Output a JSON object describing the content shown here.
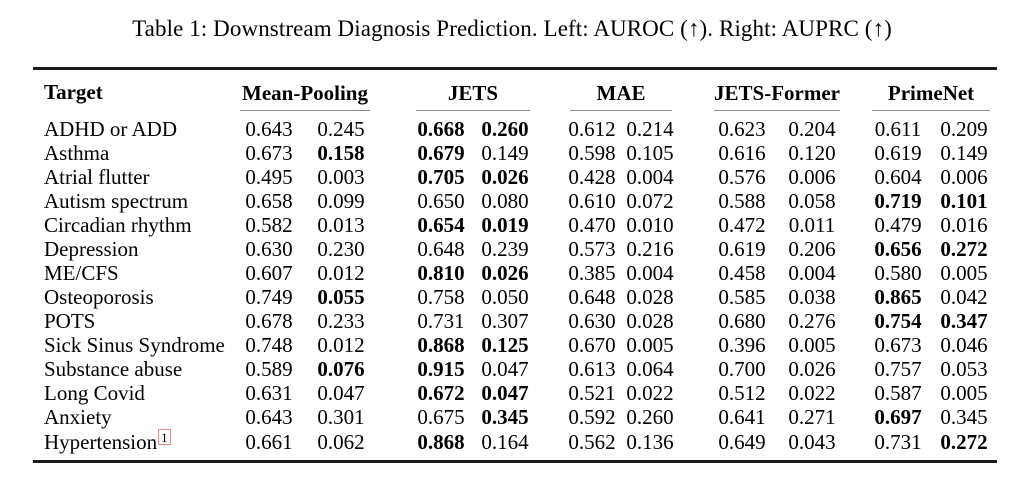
{
  "caption": "Table 1: Downstream Diagnosis Prediction. Left: AUROC (↑). Right: AUPRC (↑)",
  "table": {
    "target_header": "Target",
    "groups": [
      "Mean-Pooling",
      "JETS",
      "MAE",
      "JETS-Former",
      "PrimeNet"
    ],
    "metrics": [
      "AUROC",
      "AUPRC"
    ],
    "rule_colors": {
      "heavy_rule": "#1c1c1c",
      "cmidrule": "#8d8d8d",
      "footnote_box": "#ef8a85"
    },
    "rows": [
      {
        "target": "ADHD or ADD",
        "values": [
          "0.643",
          "0.245",
          "0.668",
          "0.260",
          "0.612",
          "0.214",
          "0.623",
          "0.204",
          "0.611",
          "0.209"
        ],
        "bold": [
          false,
          false,
          true,
          true,
          false,
          false,
          false,
          false,
          false,
          false
        ]
      },
      {
        "target": "Asthma",
        "values": [
          "0.673",
          "0.158",
          "0.679",
          "0.149",
          "0.598",
          "0.105",
          "0.616",
          "0.120",
          "0.619",
          "0.149"
        ],
        "bold": [
          false,
          true,
          true,
          false,
          false,
          false,
          false,
          false,
          false,
          false
        ]
      },
      {
        "target": "Atrial flutter",
        "values": [
          "0.495",
          "0.003",
          "0.705",
          "0.026",
          "0.428",
          "0.004",
          "0.576",
          "0.006",
          "0.604",
          "0.006"
        ],
        "bold": [
          false,
          false,
          true,
          true,
          false,
          false,
          false,
          false,
          false,
          false
        ]
      },
      {
        "target": "Autism spectrum",
        "values": [
          "0.658",
          "0.099",
          "0.650",
          "0.080",
          "0.610",
          "0.072",
          "0.588",
          "0.058",
          "0.719",
          "0.101"
        ],
        "bold": [
          false,
          false,
          false,
          false,
          false,
          false,
          false,
          false,
          true,
          true
        ]
      },
      {
        "target": "Circadian rhythm",
        "values": [
          "0.582",
          "0.013",
          "0.654",
          "0.019",
          "0.470",
          "0.010",
          "0.472",
          "0.011",
          "0.479",
          "0.016"
        ],
        "bold": [
          false,
          false,
          true,
          true,
          false,
          false,
          false,
          false,
          false,
          false
        ]
      },
      {
        "target": "Depression",
        "values": [
          "0.630",
          "0.230",
          "0.648",
          "0.239",
          "0.573",
          "0.216",
          "0.619",
          "0.206",
          "0.656",
          "0.272"
        ],
        "bold": [
          false,
          false,
          false,
          false,
          false,
          false,
          false,
          false,
          true,
          true
        ]
      },
      {
        "target": "ME/CFS",
        "values": [
          "0.607",
          "0.012",
          "0.810",
          "0.026",
          "0.385",
          "0.004",
          "0.458",
          "0.004",
          "0.580",
          "0.005"
        ],
        "bold": [
          false,
          false,
          true,
          true,
          false,
          false,
          false,
          false,
          false,
          false
        ]
      },
      {
        "target": "Osteoporosis",
        "values": [
          "0.749",
          "0.055",
          "0.758",
          "0.050",
          "0.648",
          "0.028",
          "0.585",
          "0.038",
          "0.865",
          "0.042"
        ],
        "bold": [
          false,
          true,
          false,
          false,
          false,
          false,
          false,
          false,
          true,
          false
        ]
      },
      {
        "target": "POTS",
        "values": [
          "0.678",
          "0.233",
          "0.731",
          "0.307",
          "0.630",
          "0.028",
          "0.680",
          "0.276",
          "0.754",
          "0.347"
        ],
        "bold": [
          false,
          false,
          false,
          false,
          false,
          false,
          false,
          false,
          true,
          true
        ]
      },
      {
        "target": "Sick Sinus Syndrome",
        "values": [
          "0.748",
          "0.012",
          "0.868",
          "0.125",
          "0.670",
          "0.005",
          "0.396",
          "0.005",
          "0.673",
          "0.046"
        ],
        "bold": [
          false,
          false,
          true,
          true,
          false,
          false,
          false,
          false,
          false,
          false
        ]
      },
      {
        "target": "Substance abuse",
        "values": [
          "0.589",
          "0.076",
          "0.915",
          "0.047",
          "0.613",
          "0.064",
          "0.700",
          "0.026",
          "0.757",
          "0.053"
        ],
        "bold": [
          false,
          true,
          true,
          false,
          false,
          false,
          false,
          false,
          false,
          false
        ]
      },
      {
        "target": "Long Covid",
        "values": [
          "0.631",
          "0.047",
          "0.672",
          "0.047",
          "0.521",
          "0.022",
          "0.512",
          "0.022",
          "0.587",
          "0.005"
        ],
        "bold": [
          false,
          false,
          true,
          true,
          false,
          false,
          false,
          false,
          false,
          false
        ]
      },
      {
        "target": "Anxiety",
        "values": [
          "0.643",
          "0.301",
          "0.675",
          "0.345",
          "0.592",
          "0.260",
          "0.641",
          "0.271",
          "0.697",
          "0.345"
        ],
        "bold": [
          false,
          false,
          false,
          true,
          false,
          false,
          false,
          false,
          true,
          false
        ]
      },
      {
        "target": "Hypertension",
        "footnote": "1",
        "values": [
          "0.661",
          "0.062",
          "0.868",
          "0.164",
          "0.562",
          "0.136",
          "0.649",
          "0.043",
          "0.731",
          "0.272"
        ],
        "bold": [
          false,
          false,
          true,
          false,
          false,
          false,
          false,
          false,
          false,
          true
        ]
      }
    ]
  }
}
